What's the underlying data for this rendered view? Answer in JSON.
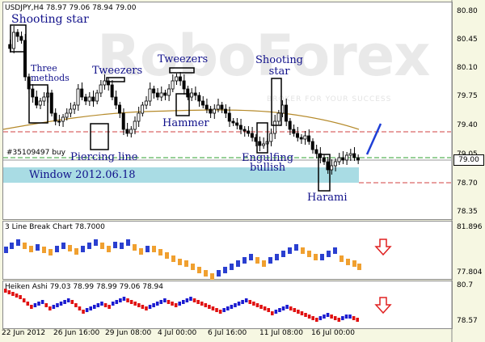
{
  "header": {
    "symbol_line": "USDJPY,H4 78.97 79.06 78.94 79.00"
  },
  "watermark": {
    "brand": "RoboForex",
    "tagline": "BROKER FOR YOUR SUCCESS"
  },
  "main_chart": {
    "price_axis": [
      "80.80",
      "80.45",
      "80.10",
      "79.75",
      "79.40",
      "79.05",
      "78.70",
      "78.35"
    ],
    "current_price": "79.00",
    "order_label": "#35109497 buy",
    "annotations": {
      "shooting_star_1": "Shooting star",
      "three_methods": "Three\nmethods",
      "tweezers_1": "Tweezers",
      "tweezers_2": "Tweezers",
      "hammer": "Hammer",
      "shooting_star_2": "Shooting\nstar",
      "piercing_line": "Piercing line",
      "engulfing": "Engulfing\nbullish",
      "harami": "Harami",
      "window": "Window 2012.06.18"
    }
  },
  "line_break_chart": {
    "label": "3 Line Break Chart 78.7000",
    "axis": [
      "81.896",
      "77.804"
    ]
  },
  "heiken_ashi_chart": {
    "label": "Heiken Ashi 79.03 78.99 78.99 79.06 78.94",
    "axis": [
      "80.7",
      "78.57"
    ]
  },
  "time_axis": [
    "22 Jun 2012",
    "26 Jun 16:00",
    "29 Jun 08:00",
    "4 Jul 00:00",
    "6 Jul 16:00",
    "11 Jul 08:00",
    "16 Jul 00:00"
  ],
  "colors": {
    "bull": "#000000",
    "bear": "#000000",
    "window": "#a9dce4",
    "ma": "#b58a2a",
    "trend_arrow": "#1f3fd6",
    "down_arrow": "#e02020",
    "lb_up": "#2a3fd0",
    "lb_down": "#f0a030",
    "ha_up": "#1a1ad0",
    "ha_down": "#e01010"
  }
}
